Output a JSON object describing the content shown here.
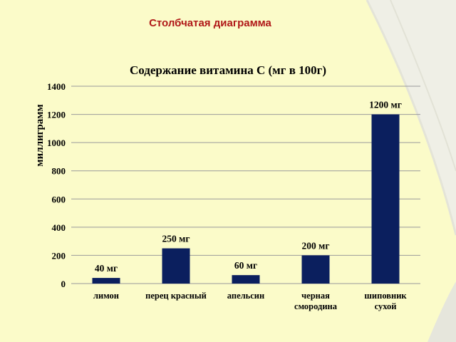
{
  "slide": {
    "title": "Столбчатая диаграмма"
  },
  "colors": {
    "background": "#fbfbc9",
    "bar": "#0b1f5e",
    "title": "#b01818"
  },
  "chart_data": {
    "type": "bar",
    "title": "Содержание витамина  С (мг в 100г)",
    "ylabel": "миллиграмм",
    "xlabel": "",
    "ylim": [
      0,
      1400
    ],
    "yticks": [
      0,
      200,
      400,
      600,
      800,
      1000,
      1200,
      1400
    ],
    "grid": true,
    "categories": [
      [
        "лимон"
      ],
      [
        "перец красный"
      ],
      [
        "апельсин"
      ],
      [
        "черная",
        "смородина"
      ],
      [
        "шиповник",
        "сухой"
      ]
    ],
    "values": [
      40,
      250,
      60,
      200,
      1200
    ],
    "data_labels": [
      "40 мг",
      "250 мг",
      "60 мг",
      "200 мг",
      "1200 мг"
    ]
  }
}
